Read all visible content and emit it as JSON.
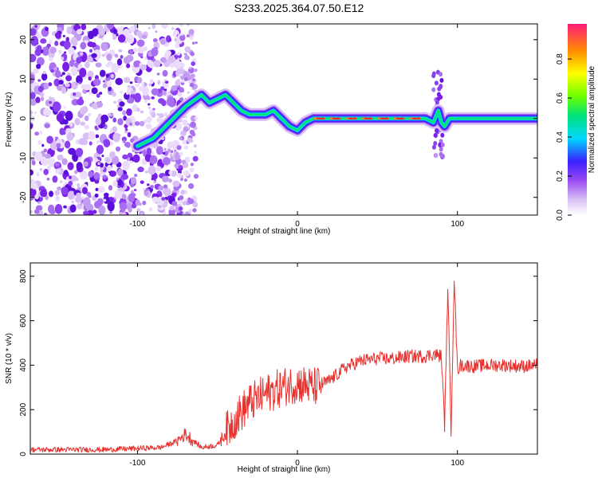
{
  "title": "S233.2025.364.07.50.E12",
  "chart_data": [
    {
      "type": "heatmap",
      "title": "S233.2025.364.07.50.E12",
      "xlabel": "Height of straight line (km)",
      "ylabel": "Frequency (Hz)",
      "xlim": [
        -167,
        150
      ],
      "ylim": [
        -24.5,
        24
      ],
      "x_ticks": [
        -100,
        0,
        100
      ],
      "y_ticks": [
        -20,
        -10,
        0,
        10,
        20
      ],
      "ridge": {
        "x": [
          -100,
          -90,
          -80,
          -70,
          -60,
          -55,
          -45,
          -40,
          -35,
          -30,
          -25,
          -20,
          -15,
          -10,
          -5,
          0,
          5,
          10,
          20,
          40,
          60,
          80,
          85,
          88,
          90,
          92,
          95,
          100,
          120,
          150
        ],
        "y": [
          -7,
          -5,
          -1,
          3,
          6,
          4,
          6,
          4,
          2,
          1,
          1,
          1,
          2,
          0,
          -2,
          -3,
          -1,
          0,
          0,
          0,
          0,
          0,
          -1,
          2,
          -1,
          -2,
          0,
          0,
          0,
          0
        ]
      },
      "colorbar": {
        "label": "Normalized spectral amplitude",
        "ticks": [
          0.0,
          0.2,
          0.4,
          0.6,
          0.8
        ],
        "range": [
          0,
          0.98
        ]
      }
    },
    {
      "type": "line",
      "xlabel": "Height of straight line (km)",
      "ylabel": "SNR (10 * v/v)",
      "xlim": [
        -167,
        150
      ],
      "ylim": [
        0,
        860
      ],
      "x_ticks": [
        -100,
        0,
        100
      ],
      "y_ticks": [
        0,
        200,
        400,
        600,
        800
      ],
      "color": "#e8312e",
      "series": [
        {
          "x": [
            -167,
            -120,
            -85,
            -75,
            -70,
            -60,
            -50,
            -40,
            -30,
            -20,
            -10,
            0,
            10,
            20,
            30,
            40,
            50,
            60,
            70,
            80,
            85,
            90,
            92,
            94,
            96,
            98,
            100,
            102,
            110,
            120,
            130,
            140,
            150
          ],
          "values": [
            20,
            20,
            30,
            60,
            90,
            30,
            40,
            150,
            230,
            270,
            300,
            320,
            300,
            330,
            390,
            420,
            430,
            430,
            440,
            440,
            450,
            440,
            130,
            760,
            100,
            800,
            380,
            400,
            395,
            400,
            400,
            395,
            400
          ]
        }
      ]
    }
  ]
}
